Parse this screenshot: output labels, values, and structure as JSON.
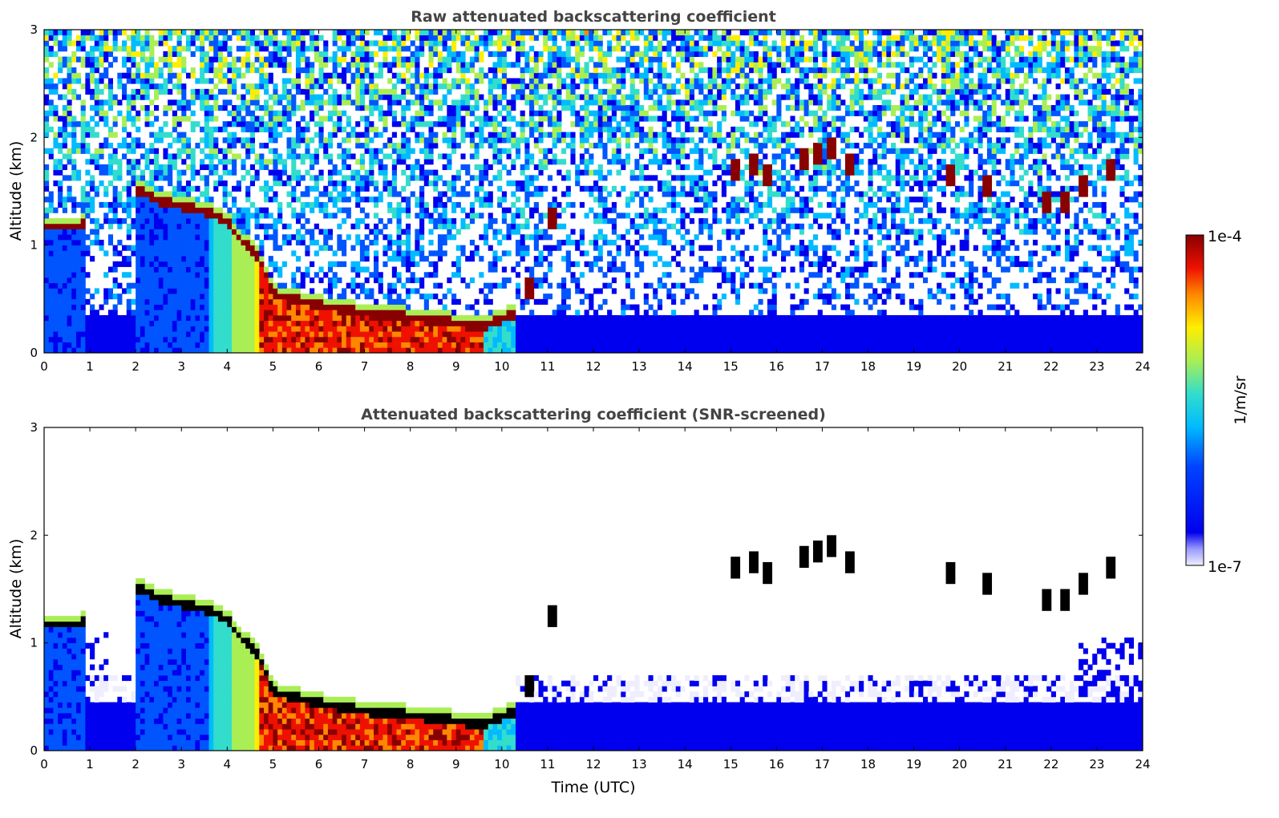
{
  "chart_data": [
    {
      "type": "heatmap",
      "title": "Raw attenuated backscattering coefficient",
      "xlabel": "",
      "ylabel": "Altitude (km)",
      "xlim": [
        0,
        24
      ],
      "ylim": [
        0,
        3
      ],
      "xticks": [
        "0",
        "1",
        "2",
        "3",
        "4",
        "5",
        "6",
        "7",
        "8",
        "9",
        "10",
        "11",
        "12",
        "13",
        "14",
        "15",
        "16",
        "17",
        "18",
        "19",
        "20",
        "21",
        "22",
        "23",
        "24"
      ],
      "yticks": [
        "0",
        "1",
        "2",
        "3"
      ],
      "screened": false,
      "cloud_base_km": [
        {
          "t": 0.0,
          "z": 1.18
        },
        {
          "t": 0.8,
          "z": 1.18
        },
        {
          "t": 2.0,
          "z": 1.52
        },
        {
          "t": 2.5,
          "z": 1.42
        },
        {
          "t": 3.0,
          "z": 1.36
        },
        {
          "t": 3.5,
          "z": 1.32
        },
        {
          "t": 4.0,
          "z": 1.22
        },
        {
          "t": 4.3,
          "z": 1.05
        },
        {
          "t": 4.7,
          "z": 0.88
        },
        {
          "t": 5.0,
          "z": 0.55
        },
        {
          "t": 6.0,
          "z": 0.44
        },
        {
          "t": 7.0,
          "z": 0.37
        },
        {
          "t": 8.0,
          "z": 0.33
        },
        {
          "t": 9.0,
          "z": 0.28
        },
        {
          "t": 9.5,
          "z": 0.24
        },
        {
          "t": 10.2,
          "z": 0.35
        }
      ],
      "upper_clouds_km": [
        {
          "t": 10.6,
          "z": 0.6
        },
        {
          "t": 11.1,
          "z": 1.25
        },
        {
          "t": 15.1,
          "z": 1.7
        },
        {
          "t": 15.5,
          "z": 1.75
        },
        {
          "t": 15.8,
          "z": 1.65
        },
        {
          "t": 16.6,
          "z": 1.8
        },
        {
          "t": 16.9,
          "z": 1.85
        },
        {
          "t": 17.2,
          "z": 1.9
        },
        {
          "t": 17.6,
          "z": 1.75
        },
        {
          "t": 19.8,
          "z": 1.65
        },
        {
          "t": 20.6,
          "z": 1.55
        },
        {
          "t": 21.9,
          "z": 1.38
        },
        {
          "t": 22.3,
          "z": 1.4
        },
        {
          "t": 22.7,
          "z": 1.55
        },
        {
          "t": 23.3,
          "z": 1.72
        }
      ]
    },
    {
      "type": "heatmap",
      "title": "Attenuated backscattering coefficient (SNR-screened)",
      "xlabel": "Time (UTC)",
      "ylabel": "Altitude (km)",
      "xlim": [
        0,
        24
      ],
      "ylim": [
        0,
        3
      ],
      "xticks": [
        "0",
        "1",
        "2",
        "3",
        "4",
        "5",
        "6",
        "7",
        "8",
        "9",
        "10",
        "11",
        "12",
        "13",
        "14",
        "15",
        "16",
        "17",
        "18",
        "19",
        "20",
        "21",
        "22",
        "23",
        "24"
      ],
      "yticks": [
        "0",
        "1",
        "2",
        "3"
      ],
      "screened": true
    }
  ],
  "colorbar": {
    "max_label": "1e-4",
    "min_label": "1e-7",
    "unit": "1/m/sr",
    "colormap": [
      "#eeeeff",
      "#0000ee",
      "#0055ff",
      "#00bbff",
      "#33ddcc",
      "#aaee55",
      "#ffee00",
      "#ff8800",
      "#ee1100",
      "#880000"
    ]
  }
}
